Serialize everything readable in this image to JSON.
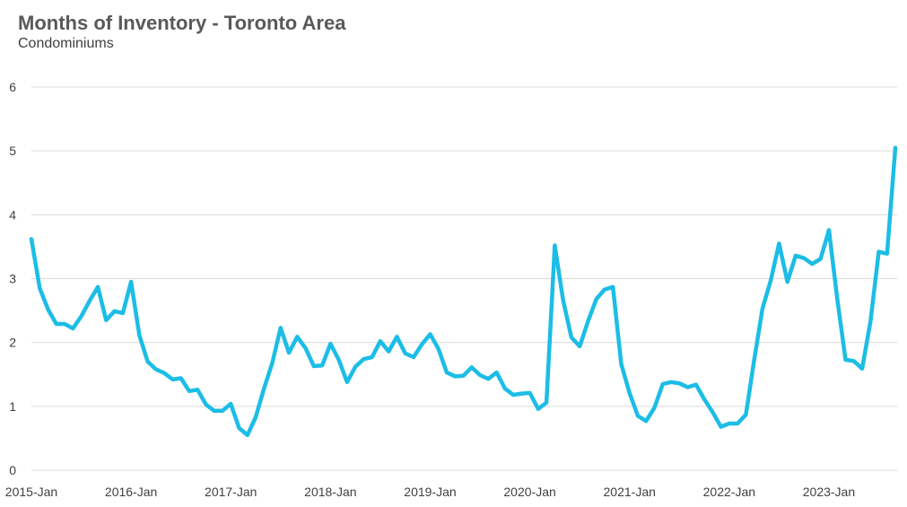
{
  "chart_data": {
    "type": "line",
    "title": "Months of Inventory - Toronto Area",
    "subtitle": "Condominiums",
    "xlabel": "",
    "ylabel": "",
    "ylim": [
      0,
      6
    ],
    "yticks": [
      "0",
      "1",
      "2",
      "3",
      "4",
      "5",
      "6"
    ],
    "x_tick_labels": [
      "2015-Jan",
      "2016-Jan",
      "2017-Jan",
      "2018-Jan",
      "2019-Jan",
      "2020-Jan",
      "2021-Jan",
      "2022-Jan",
      "2023-Jan"
    ],
    "grid": true,
    "legend": "none",
    "colors": {
      "line": "#1cbde6",
      "grid": "#d9d9d9",
      "title": "#595959",
      "text": "#404040"
    },
    "series": [
      {
        "values": [
          3.62,
          2.85,
          2.52,
          2.29,
          2.29,
          2.22,
          2.41,
          2.65,
          2.87,
          2.35,
          2.49,
          2.46,
          2.95,
          2.11,
          1.7,
          1.58,
          1.52,
          1.42,
          1.44,
          1.24,
          1.26,
          1.03,
          0.93,
          0.93,
          1.04,
          0.66,
          0.55,
          0.83,
          1.28,
          1.68,
          2.23,
          1.84,
          2.09,
          1.91,
          1.63,
          1.64,
          1.98,
          1.73,
          1.38,
          1.62,
          1.74,
          1.77,
          2.02,
          1.86,
          2.09,
          1.83,
          1.77,
          1.97,
          2.13,
          1.9,
          1.53,
          1.47,
          1.48,
          1.61,
          1.49,
          1.43,
          1.53,
          1.28,
          1.18,
          1.2,
          1.21,
          0.96,
          1.06,
          3.52,
          2.67,
          2.08,
          1.94,
          2.33,
          2.68,
          2.83,
          2.87,
          1.66,
          1.21,
          0.85,
          0.77,
          0.98,
          1.35,
          1.38,
          1.36,
          1.3,
          1.34,
          1.11,
          0.91,
          0.68,
          0.73,
          0.73,
          0.87,
          1.72,
          2.53,
          2.97,
          3.55,
          2.95,
          3.36,
          3.32,
          3.23,
          3.31,
          3.76,
          2.69,
          1.73,
          1.71,
          1.59,
          2.33,
          3.42,
          3.39,
          5.05
        ]
      }
    ]
  }
}
